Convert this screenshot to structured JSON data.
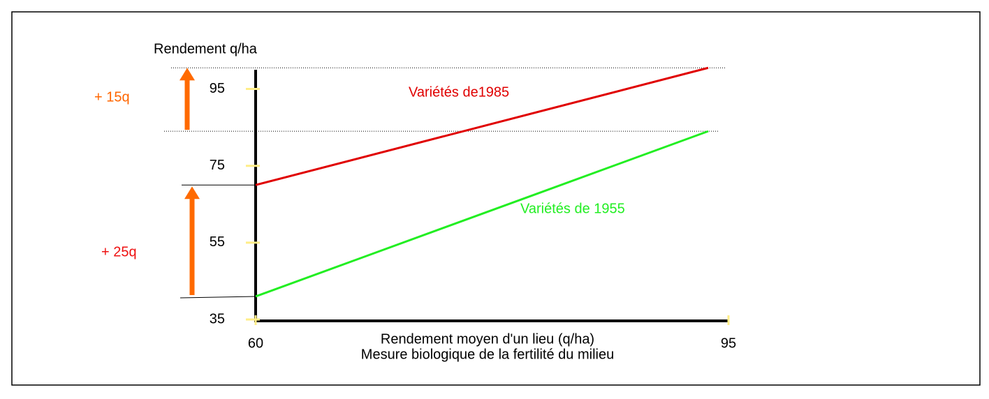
{
  "chart_data": {
    "type": "line",
    "y_label": "Rendement q/ha",
    "x_label": [
      "Rendement moyen d'un lieu (q/ha)",
      "Mesure biologique de la fertilité du milieu"
    ],
    "x": [
      60,
      93.5
    ],
    "series": [
      {
        "name": "Variétés de1985",
        "color": "#e00000",
        "values": [
          70,
          100.5
        ]
      },
      {
        "name": "Variétés de 1955",
        "color": "#22ee22",
        "values": [
          41,
          84
        ]
      }
    ],
    "annotations": [
      {
        "text": "+ 15q",
        "color": "#ff6600"
      },
      {
        "text": "+ 25q",
        "color": "#ee1111"
      }
    ],
    "xlim": [
      60,
      95
    ],
    "xticks": [
      60,
      95
    ],
    "ylim": [
      35,
      100
    ],
    "yticks": [
      35,
      55,
      75,
      95
    ],
    "grid": false
  }
}
